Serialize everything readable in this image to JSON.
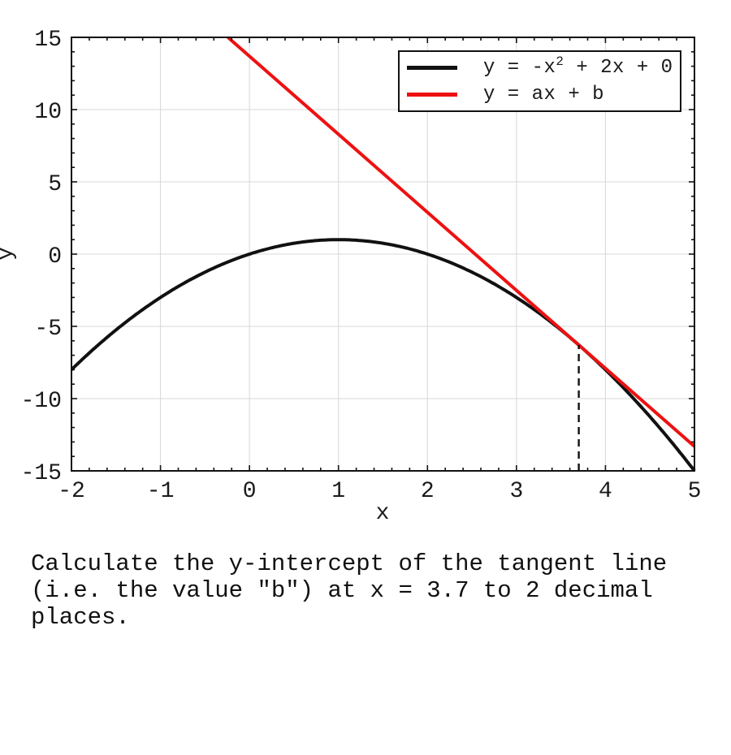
{
  "page": {
    "background": "#ffffff"
  },
  "chart_data": {
    "type": "line",
    "title": "",
    "xlabel": "x",
    "ylabel": "y",
    "xlim": [
      -2,
      5
    ],
    "ylim": [
      -15,
      15
    ],
    "x_ticks": [
      -2,
      -1,
      0,
      1,
      2,
      3,
      4,
      5
    ],
    "y_ticks": [
      -15,
      -10,
      -5,
      0,
      5,
      10,
      15
    ],
    "x_minor_step": 0.2,
    "y_minor_step": 1,
    "grid": true,
    "legend_position": "upper-right",
    "colors": {
      "grid": "#d8d8d8",
      "axis": "#111111",
      "tick_label": "#1a1a1a",
      "curve": "#111111",
      "tangent": "#ee1111"
    },
    "series": [
      {
        "name": "parabola",
        "legend_label": "y = -x^2 + 2x + 0",
        "fn": "quadratic",
        "coeffs": [
          -1,
          2,
          0
        ],
        "color": "#111111",
        "width": 4
      },
      {
        "name": "tangent-line",
        "legend_label": "y = ax + b",
        "fn": "linear",
        "slope": -5.4,
        "intercept": 13.69,
        "color": "#ee1111",
        "width": 4
      },
      {
        "name": "tangent-x-guide",
        "fn": "vline",
        "x": 3.7,
        "y_from": -15,
        "y_to": -6.29,
        "color": "#111111",
        "width": 2.4,
        "dash": [
          9,
          6
        ]
      }
    ],
    "legend": {
      "entries": [
        {
          "pre": "y = -x",
          "sup": "2",
          "post": " + 2x + 0",
          "color": "#111111"
        },
        {
          "pre": "y = ax + b",
          "sup": "",
          "post": "",
          "color": "#ee1111"
        }
      ]
    }
  },
  "question": {
    "text": "Calculate the y-intercept of the tangent line (i.e. the value \"b\") at x = 3.7 to 2 decimal places."
  }
}
